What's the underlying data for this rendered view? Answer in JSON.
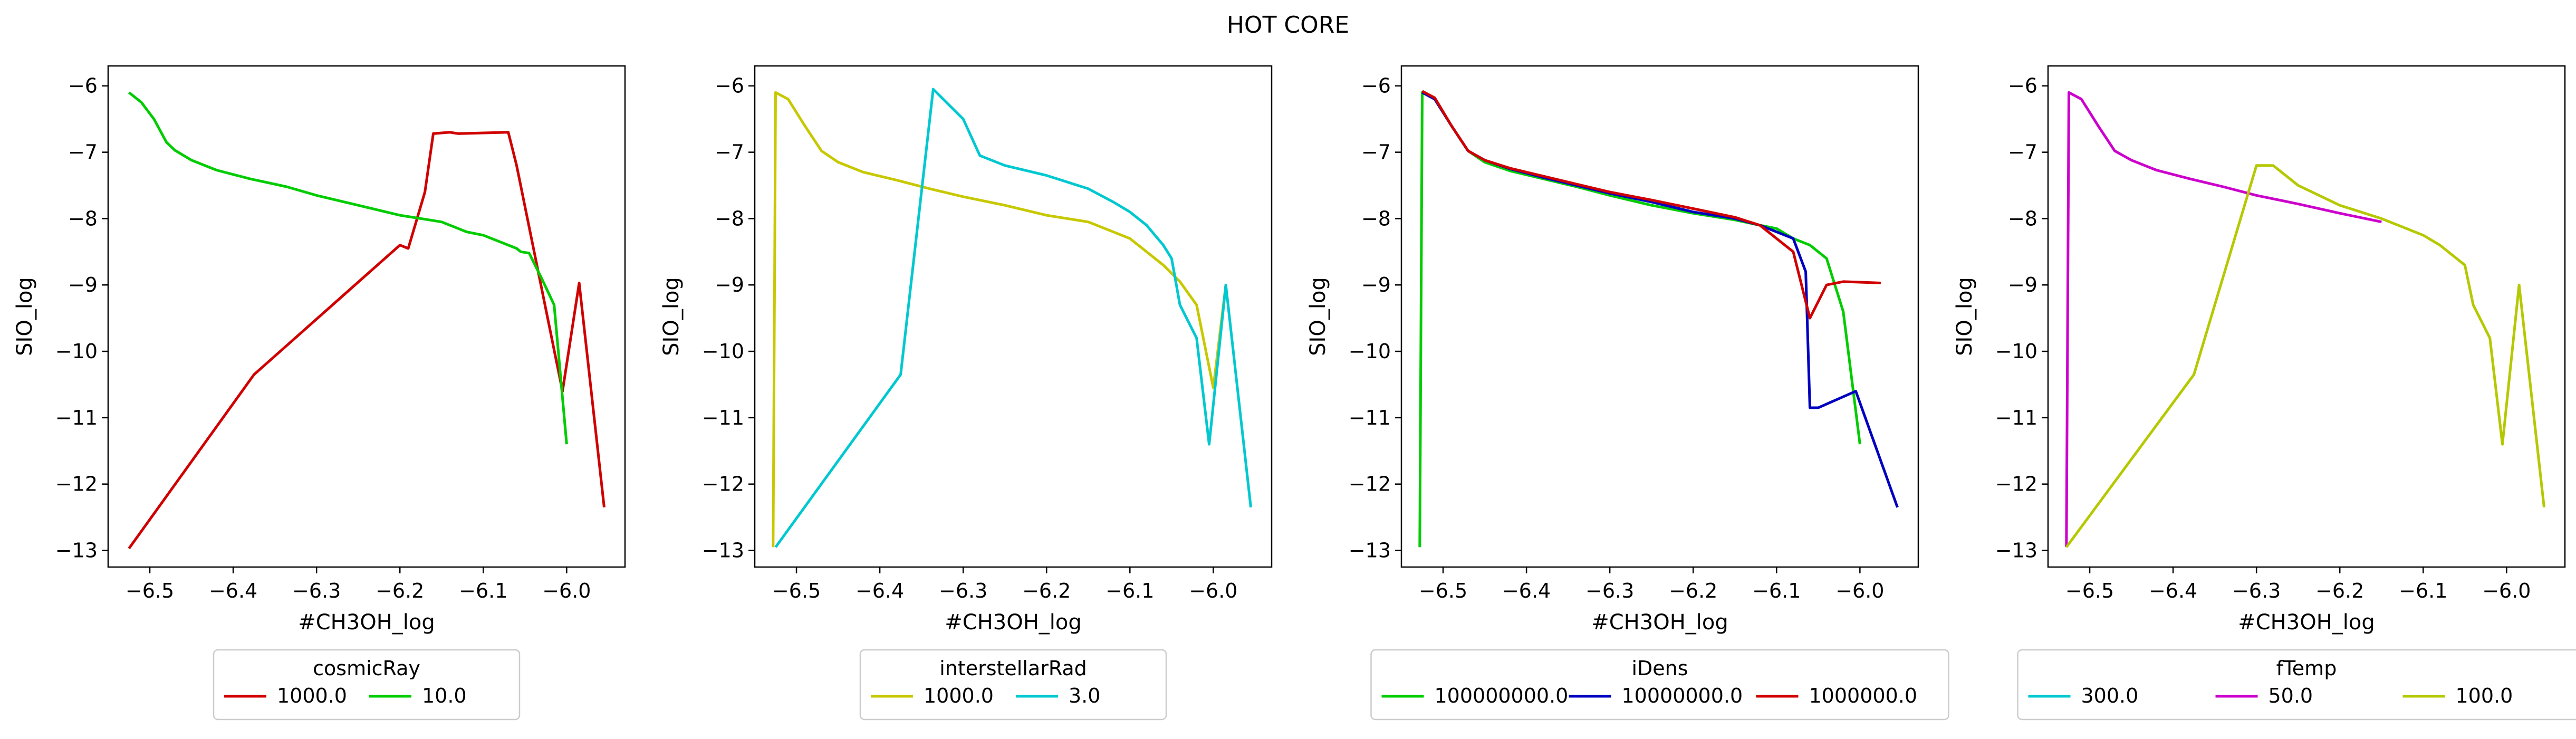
{
  "figure": {
    "title": "HOT CORE"
  },
  "colors": {
    "red": "#d00000",
    "green": "#00cc00",
    "yellow": "#c8c800",
    "cyan": "#00c8d0",
    "blue": "#0000c0",
    "magenta": "#cc00cc",
    "olive": "#b5c800"
  },
  "chart_data": [
    {
      "type": "line",
      "title": "",
      "xlabel": "#CH3OH_log",
      "ylabel": "SIO_log",
      "xlim": [
        -6.55,
        -5.93
      ],
      "ylim": [
        -13.25,
        -5.7
      ],
      "xticks": [
        -6.5,
        -6.4,
        -6.3,
        -6.2,
        -6.1,
        -6.0
      ],
      "xtick_labels": [
        "−6.5",
        "−6.4",
        "−6.3",
        "−6.2",
        "−6.1",
        "−6.0"
      ],
      "yticks": [
        -13,
        -12,
        -11,
        -10,
        -9,
        -8,
        -7,
        -6
      ],
      "ytick_labels": [
        "−13",
        "−12",
        "−11",
        "−10",
        "−9",
        "−8",
        "−7",
        "−6"
      ],
      "legend": {
        "title": "cosmicRay",
        "position": "below"
      },
      "series": [
        {
          "name": "1000.0",
          "color": "#d00000",
          "x": [
            -6.525,
            -6.375,
            -6.2,
            -6.19,
            -6.17,
            -6.16,
            -6.14,
            -6.13,
            -6.07,
            -6.06,
            -6.005,
            -5.985,
            -5.955
          ],
          "y": [
            -12.97,
            -10.35,
            -8.4,
            -8.45,
            -7.6,
            -6.72,
            -6.7,
            -6.72,
            -6.7,
            -7.2,
            -10.6,
            -8.97,
            -12.35
          ]
        },
        {
          "name": "10.0",
          "color": "#00cc00",
          "x": [
            -6.525,
            -6.51,
            -6.495,
            -6.48,
            -6.47,
            -6.45,
            -6.42,
            -6.38,
            -6.336,
            -6.3,
            -6.25,
            -6.2,
            -6.15,
            -6.12,
            -6.1,
            -6.08,
            -6.06,
            -6.055,
            -6.045,
            -6.03,
            -6.015,
            -6.0
          ],
          "y": [
            -6.1,
            -6.25,
            -6.5,
            -6.85,
            -6.97,
            -7.12,
            -7.27,
            -7.4,
            -7.52,
            -7.65,
            -7.8,
            -7.95,
            -8.05,
            -8.2,
            -8.25,
            -8.35,
            -8.45,
            -8.5,
            -8.52,
            -8.9,
            -9.3,
            -11.4
          ]
        }
      ]
    },
    {
      "type": "line",
      "title": "",
      "xlabel": "#CH3OH_log",
      "ylabel": "SIO_log",
      "xlim": [
        -6.55,
        -5.93
      ],
      "ylim": [
        -13.25,
        -5.7
      ],
      "xticks": [
        -6.5,
        -6.4,
        -6.3,
        -6.2,
        -6.1,
        -6.0
      ],
      "xtick_labels": [
        "−6.5",
        "−6.4",
        "−6.3",
        "−6.2",
        "−6.1",
        "−6.0"
      ],
      "yticks": [
        -13,
        -12,
        -11,
        -10,
        -9,
        -8,
        -7,
        -6
      ],
      "ytick_labels": [
        "−13",
        "−12",
        "−11",
        "−10",
        "−9",
        "−8",
        "−7",
        "−6"
      ],
      "legend": {
        "title": "interstellarRad",
        "position": "below"
      },
      "series": [
        {
          "name": "1000.0",
          "color": "#c8c800",
          "x": [
            -6.528,
            -6.525,
            -6.51,
            -6.49,
            -6.47,
            -6.45,
            -6.42,
            -6.38,
            -6.34,
            -6.3,
            -6.25,
            -6.2,
            -6.15,
            -6.12,
            -6.1,
            -6.08,
            -6.06,
            -6.04,
            -6.02,
            -6.0,
            -5.985
          ],
          "y": [
            -12.95,
            -6.1,
            -6.2,
            -6.6,
            -6.98,
            -7.15,
            -7.3,
            -7.42,
            -7.55,
            -7.67,
            -7.8,
            -7.95,
            -8.05,
            -8.2,
            -8.3,
            -8.5,
            -8.7,
            -8.95,
            -9.3,
            -10.55,
            -9.0
          ]
        },
        {
          "name": "3.0",
          "color": "#00c8d0",
          "x": [
            -6.525,
            -6.375,
            -6.336,
            -6.3,
            -6.28,
            -6.25,
            -6.2,
            -6.15,
            -6.12,
            -6.1,
            -6.08,
            -6.06,
            -6.05,
            -6.04,
            -6.02,
            -6.005,
            -5.985,
            -5.955
          ],
          "y": [
            -12.95,
            -10.35,
            -6.05,
            -6.5,
            -7.05,
            -7.2,
            -7.35,
            -7.55,
            -7.75,
            -7.9,
            -8.1,
            -8.4,
            -8.6,
            -9.3,
            -9.8,
            -11.4,
            -9.0,
            -12.35
          ]
        }
      ]
    },
    {
      "type": "line",
      "title": "",
      "xlabel": "#CH3OH_log",
      "ylabel": "SIO_log",
      "xlim": [
        -6.55,
        -5.93
      ],
      "ylim": [
        -13.25,
        -5.7
      ],
      "xticks": [
        -6.5,
        -6.4,
        -6.3,
        -6.2,
        -6.1,
        -6.0
      ],
      "xtick_labels": [
        "−6.5",
        "−6.4",
        "−6.3",
        "−6.2",
        "−6.1",
        "−6.0"
      ],
      "yticks": [
        -13,
        -12,
        -11,
        -10,
        -9,
        -8,
        -7,
        -6
      ],
      "ytick_labels": [
        "−13",
        "−12",
        "−11",
        "−10",
        "−9",
        "−8",
        "−7",
        "−6"
      ],
      "legend": {
        "title": "iDens",
        "position": "below"
      },
      "series": [
        {
          "name": "100000000.0",
          "color": "#00cc00",
          "x": [
            -6.528,
            -6.525,
            -6.51,
            -6.49,
            -6.47,
            -6.45,
            -6.42,
            -6.38,
            -6.34,
            -6.3,
            -6.25,
            -6.2,
            -6.15,
            -6.12,
            -6.1,
            -6.08,
            -6.06,
            -6.04,
            -6.02,
            -6.0
          ],
          "y": [
            -12.95,
            -6.1,
            -6.2,
            -6.6,
            -6.98,
            -7.15,
            -7.28,
            -7.4,
            -7.52,
            -7.65,
            -7.8,
            -7.92,
            -8.02,
            -8.1,
            -8.15,
            -8.3,
            -8.4,
            -8.6,
            -9.4,
            -11.4
          ]
        },
        {
          "name": "10000000.0",
          "color": "#0000c0",
          "x": [
            -6.525,
            -6.51,
            -6.49,
            -6.47,
            -6.45,
            -6.42,
            -6.38,
            -6.34,
            -6.3,
            -6.25,
            -6.2,
            -6.15,
            -6.12,
            -6.1,
            -6.08,
            -6.065,
            -6.06,
            -6.05,
            -6.005,
            -5.955
          ],
          "y": [
            -6.1,
            -6.2,
            -6.6,
            -6.98,
            -7.12,
            -7.25,
            -7.38,
            -7.5,
            -7.62,
            -7.75,
            -7.9,
            -8.0,
            -8.1,
            -8.2,
            -8.3,
            -8.8,
            -10.85,
            -10.85,
            -10.6,
            -12.35
          ]
        },
        {
          "name": "1000000.0",
          "color": "#d00000",
          "x": [
            -6.525,
            -6.51,
            -6.49,
            -6.47,
            -6.45,
            -6.42,
            -6.38,
            -6.34,
            -6.3,
            -6.25,
            -6.2,
            -6.15,
            -6.12,
            -6.1,
            -6.08,
            -6.06,
            -6.04,
            -6.02,
            -5.975
          ],
          "y": [
            -6.08,
            -6.18,
            -6.6,
            -6.98,
            -7.12,
            -7.24,
            -7.36,
            -7.48,
            -7.6,
            -7.72,
            -7.85,
            -7.98,
            -8.1,
            -8.3,
            -8.5,
            -9.5,
            -9.0,
            -8.95,
            -8.97
          ]
        }
      ]
    },
    {
      "type": "line",
      "title": "",
      "xlabel": "#CH3OH_log",
      "ylabel": "SIO_log",
      "xlim": [
        -6.55,
        -5.93
      ],
      "ylim": [
        -13.25,
        -5.7
      ],
      "xticks": [
        -6.5,
        -6.4,
        -6.3,
        -6.2,
        -6.1,
        -6.0
      ],
      "xtick_labels": [
        "−6.5",
        "−6.4",
        "−6.3",
        "−6.2",
        "−6.1",
        "−6.0"
      ],
      "yticks": [
        -13,
        -12,
        -11,
        -10,
        -9,
        -8,
        -7,
        -6
      ],
      "ytick_labels": [
        "−13",
        "−12",
        "−11",
        "−10",
        "−9",
        "−8",
        "−7",
        "−6"
      ],
      "legend": {
        "title": "fTemp",
        "position": "below"
      },
      "series": [
        {
          "name": "300.0",
          "color": "#00c8d0",
          "x": [],
          "y": []
        },
        {
          "name": "50.0",
          "color": "#cc00cc",
          "x": [
            -6.528,
            -6.525,
            -6.51,
            -6.49,
            -6.47,
            -6.45,
            -6.42,
            -6.38,
            -6.34,
            -6.3,
            -6.25,
            -6.2,
            -6.15
          ],
          "y": [
            -12.95,
            -6.1,
            -6.2,
            -6.6,
            -6.98,
            -7.12,
            -7.27,
            -7.4,
            -7.52,
            -7.65,
            -7.78,
            -7.92,
            -8.05
          ]
        },
        {
          "name": "100.0",
          "color": "#b5c800",
          "x": [
            -6.528,
            -6.375,
            -6.3,
            -6.28,
            -6.25,
            -6.2,
            -6.15,
            -6.12,
            -6.1,
            -6.08,
            -6.06,
            -6.05,
            -6.04,
            -6.02,
            -6.005,
            -5.985,
            -5.955
          ],
          "y": [
            -12.95,
            -10.35,
            -7.2,
            -7.2,
            -7.5,
            -7.8,
            -8.0,
            -8.15,
            -8.25,
            -8.4,
            -8.6,
            -8.7,
            -9.3,
            -9.8,
            -11.4,
            -9.0,
            -12.35
          ]
        }
      ]
    }
  ]
}
